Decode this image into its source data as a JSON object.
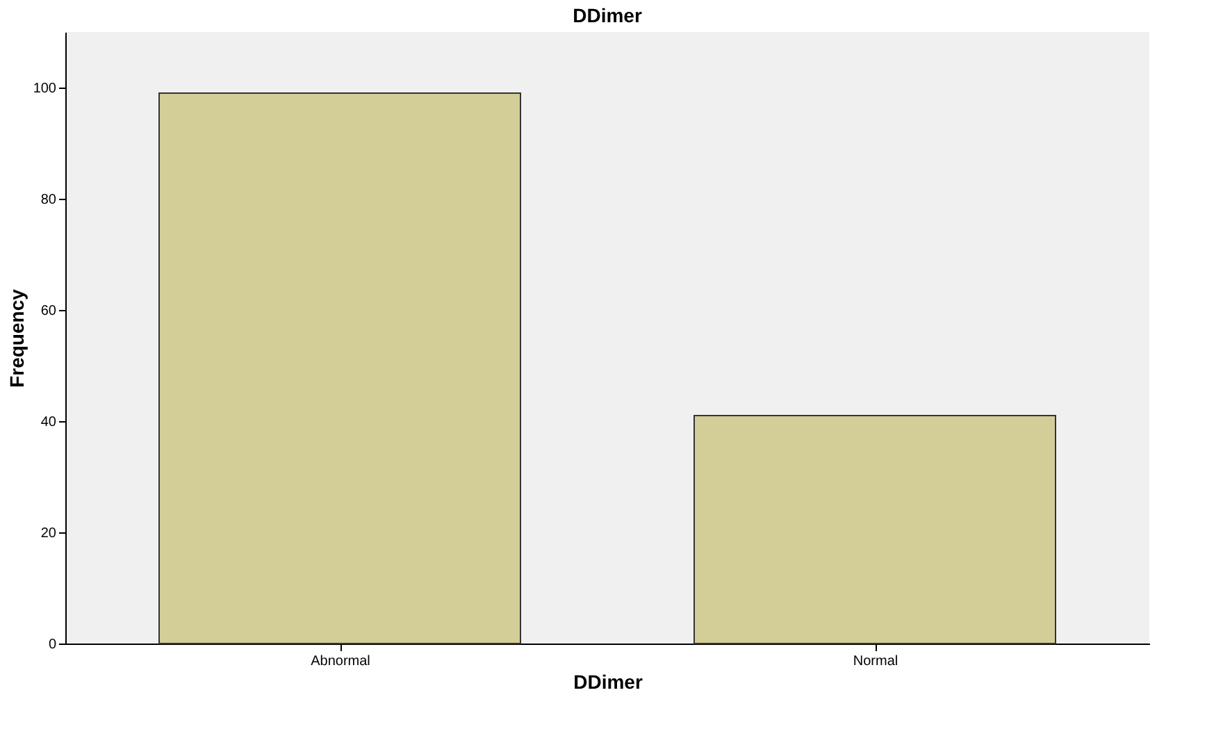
{
  "chart_data": {
    "type": "bar",
    "title": "DDimer",
    "xlabel": "DDimer",
    "ylabel": "Frequency",
    "categories": [
      "Abnormal",
      "Normal"
    ],
    "values": [
      99,
      41
    ],
    "color": "#d3cd98",
    "ylim": [
      0,
      110
    ],
    "yticks": [
      0,
      20,
      40,
      60,
      80,
      100
    ],
    "grid": false
  }
}
